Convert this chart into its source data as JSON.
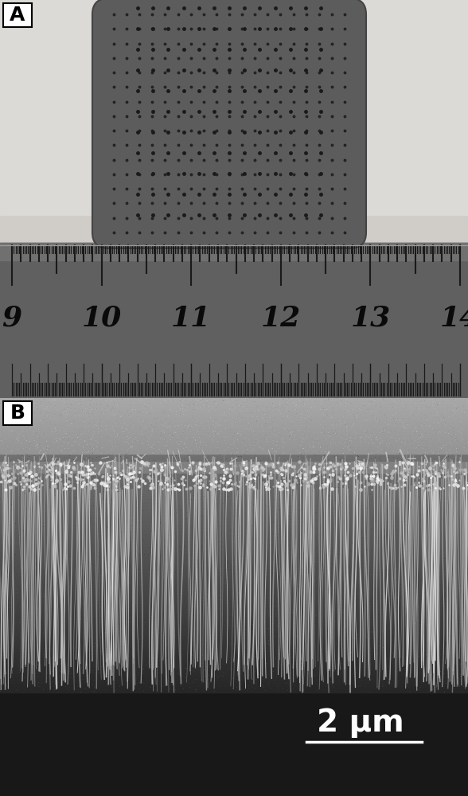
{
  "fig_width": 5.88,
  "fig_height": 10.0,
  "dpi": 100,
  "panel_A_label": "A",
  "panel_B_label": "B",
  "scale_bar_text": "2 μm",
  "ruler_numbers": [
    "9",
    "10",
    "11",
    "12",
    "13",
    "14"
  ],
  "ruler_bg_color": "#686868",
  "ruler_text_color": "#111111",
  "chip_color": "#606060",
  "chip_dot_color": "#2a2a2a",
  "bg_color_A_upper": "#d8d4d0",
  "bg_color_A_lower": "#c8c4c0",
  "label_fontsize": 18,
  "ruler_fontsize": 26,
  "scale_bar_fontsize": 28
}
